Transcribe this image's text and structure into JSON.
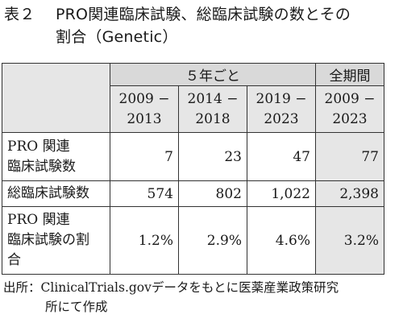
{
  "title": {
    "label": "表２",
    "line1": "PRO関連臨床試験、総臨床試験の数とその",
    "line2": "割合（Genetic）"
  },
  "table": {
    "group_headers": [
      "５年ごと",
      "全期間"
    ],
    "periods": [
      {
        "start": "2009 −",
        "end": "2013"
      },
      {
        "start": "2014 −",
        "end": "2018"
      },
      {
        "start": "2019 −",
        "end": "2023"
      },
      {
        "start": "2009 −",
        "end": "2023"
      }
    ],
    "rows": [
      {
        "label_line1": "PRO 関連",
        "label_line2": "臨床試験数",
        "label_line3": "",
        "values": [
          "7",
          "23",
          "47",
          "77"
        ]
      },
      {
        "label_line1": "総臨床試験数",
        "label_line2": "",
        "label_line3": "",
        "values": [
          "574",
          "802",
          "1,022",
          "2,398"
        ]
      },
      {
        "label_line1": "PRO 関連",
        "label_line2": "臨床試験の割",
        "label_line3": "合",
        "values": [
          "1.2%",
          "2.9%",
          "4.6%",
          "3.2%"
        ]
      }
    ]
  },
  "source": {
    "line1": "出所：ClinicalTrials.govデータをもとに医薬産業政策研究",
    "line2": "所にて作成"
  }
}
